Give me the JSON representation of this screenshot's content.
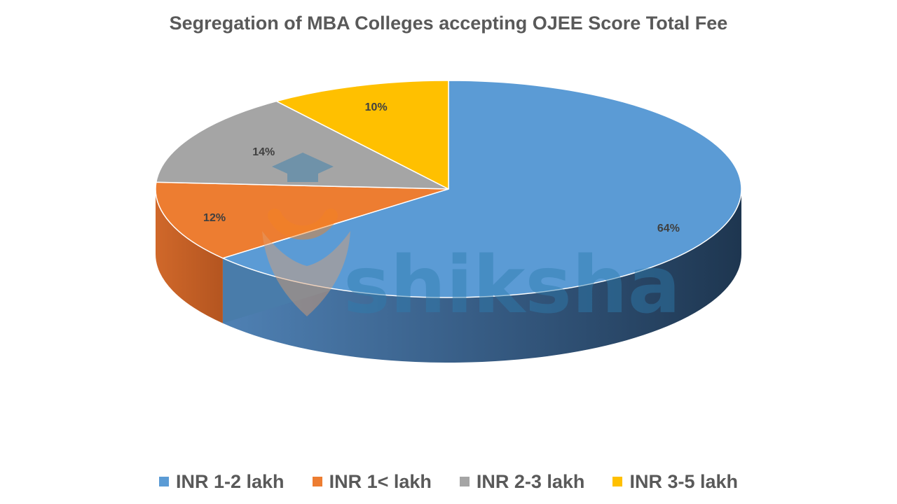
{
  "chart_data": {
    "type": "pie",
    "title": "Segregation of MBA Colleges accepting OJEE Score Total Fee",
    "categories": [
      "INR 1-2 lakh",
      "INR 1< lakh",
      "INR 2-3 lakh",
      "INR 3-5 lakh"
    ],
    "values": [
      64,
      12,
      14,
      10
    ],
    "labels": [
      "64%",
      "12%",
      "14%",
      "10%"
    ],
    "colors": [
      "#5B9BD5",
      "#ED7D31",
      "#A5A5A5",
      "#FFC000"
    ],
    "style": "3d",
    "legend_position": "bottom"
  },
  "watermark": {
    "text": "shiksha",
    "colors": [
      "#2E7DAF",
      "#F58220"
    ]
  }
}
